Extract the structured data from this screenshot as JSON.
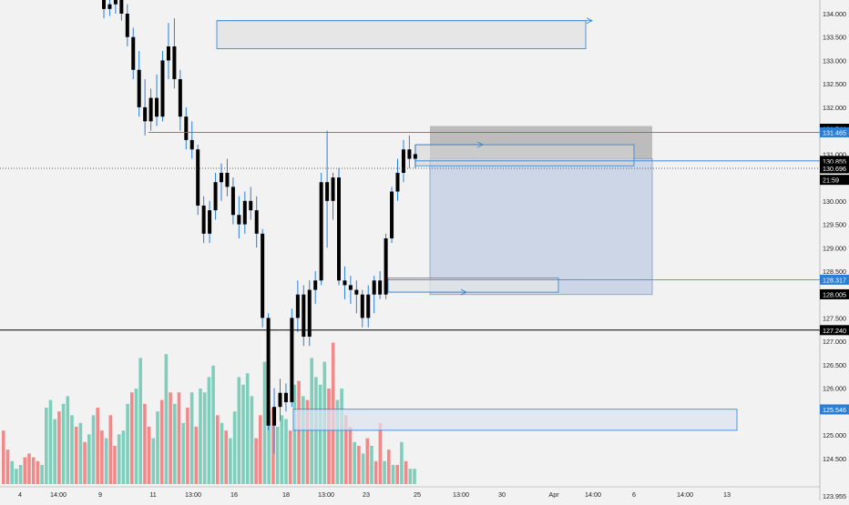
{
  "chart_data": {
    "type": "candlestick",
    "colors": {
      "background": "#f2f2f2",
      "candle": "#000000",
      "wick": "#2a7fd4",
      "volume_up": "#7fcdbb",
      "volume_down": "#f08a8a",
      "zone_fill": "#e6e6e6",
      "zone_stroke": "#2a7fd4",
      "position_profit": "#c9d4e6",
      "position_stop": "#b3b3b3",
      "label_blue": "#2a7fd4",
      "label_black": "#000000",
      "axis_text": "#222222"
    },
    "y_axis": {
      "range": [
        123.955,
        134.4
      ],
      "ticks": [
        "134.000",
        "133.500",
        "133.000",
        "132.500",
        "132.000",
        "131.500",
        "131.000",
        "130.500",
        "130.000",
        "129.500",
        "129.000",
        "128.500",
        "128.000",
        "127.500",
        "127.000",
        "126.500",
        "126.000",
        "125.500",
        "125.000",
        "124.500"
      ],
      "tick_values": [
        134.0,
        133.5,
        133.0,
        132.5,
        132.0,
        131.5,
        131.0,
        130.5,
        130.0,
        129.5,
        129.0,
        128.5,
        128.0,
        127.5,
        127.0,
        126.5,
        126.0,
        125.5,
        125.0,
        124.5
      ],
      "bottom_label": "123.955"
    },
    "x_axis": {
      "labels": [
        "4",
        "14:00",
        "9",
        "11",
        "13:00",
        "16",
        "18",
        "13:00",
        "23",
        "25",
        "13:00",
        "30",
        "Apr",
        "14:00",
        "6",
        "14:00",
        "13"
      ]
    },
    "price_labels": [
      {
        "value": 131.541,
        "text": "131.541",
        "style": "black"
      },
      {
        "value": 131.465,
        "text": "131.465",
        "style": "blue"
      },
      {
        "value": 130.855,
        "text": "130.855",
        "style": "black"
      },
      {
        "value": 130.696,
        "text": "130.696",
        "style": "black"
      },
      {
        "value": 130.45,
        "text": "21:59",
        "style": "black"
      },
      {
        "value": 128.317,
        "text": "128.317",
        "style": "blue"
      },
      {
        "value": 128.005,
        "text": "128.005",
        "style": "black"
      },
      {
        "value": 127.24,
        "text": "127.240",
        "style": "black"
      },
      {
        "value": 125.546,
        "text": "125.546",
        "style": "blue"
      }
    ],
    "candles": [
      [
        134.3,
        134.45,
        133.9,
        134.1
      ],
      [
        134.1,
        134.4,
        133.95,
        134.2
      ],
      [
        134.2,
        134.45,
        134.0,
        134.3
      ],
      [
        134.3,
        134.4,
        133.85,
        134.0
      ],
      [
        134.0,
        134.2,
        133.3,
        133.5
      ],
      [
        133.5,
        133.7,
        132.6,
        132.8
      ],
      [
        132.8,
        133.2,
        131.8,
        132.0
      ],
      [
        132.0,
        132.6,
        131.4,
        131.7
      ],
      [
        131.7,
        132.4,
        131.5,
        132.2
      ],
      [
        132.2,
        132.7,
        131.6,
        131.8
      ],
      [
        131.8,
        133.2,
        131.7,
        133.0
      ],
      [
        133.0,
        133.8,
        132.6,
        133.3
      ],
      [
        133.3,
        133.9,
        132.4,
        132.6
      ],
      [
        132.6,
        132.8,
        131.5,
        131.8
      ],
      [
        131.8,
        132.0,
        131.1,
        131.3
      ],
      [
        131.3,
        131.7,
        130.9,
        131.1
      ],
      [
        131.1,
        131.2,
        129.7,
        129.9
      ],
      [
        129.9,
        130.1,
        129.1,
        129.3
      ],
      [
        129.3,
        130.0,
        129.1,
        129.8
      ],
      [
        129.8,
        130.6,
        129.6,
        130.4
      ],
      [
        130.4,
        130.8,
        130.0,
        130.6
      ],
      [
        130.6,
        130.9,
        130.1,
        130.3
      ],
      [
        130.3,
        130.5,
        129.5,
        129.7
      ],
      [
        129.7,
        130.1,
        129.2,
        129.5
      ],
      [
        129.5,
        130.2,
        129.3,
        130.0
      ],
      [
        130.0,
        130.3,
        129.6,
        129.8
      ],
      [
        129.8,
        130.1,
        129.0,
        129.3
      ],
      [
        129.3,
        129.4,
        127.3,
        127.5
      ],
      [
        127.5,
        127.6,
        125.1,
        125.2
      ],
      [
        125.2,
        126.0,
        124.6,
        125.6
      ],
      [
        125.6,
        126.2,
        125.3,
        125.9
      ],
      [
        125.9,
        126.1,
        125.5,
        125.7
      ],
      [
        125.7,
        127.7,
        125.6,
        127.5
      ],
      [
        127.5,
        128.3,
        127.2,
        128.0
      ],
      [
        128.0,
        128.2,
        126.9,
        127.1
      ],
      [
        127.1,
        128.3,
        126.9,
        128.1
      ],
      [
        128.1,
        128.5,
        127.8,
        128.3
      ],
      [
        128.3,
        130.6,
        128.2,
        130.4
      ],
      [
        130.4,
        131.5,
        129.0,
        130.0
      ],
      [
        130.0,
        130.6,
        129.6,
        130.5
      ],
      [
        130.5,
        130.7,
        128.2,
        128.3
      ],
      [
        128.3,
        128.6,
        127.9,
        128.2
      ],
      [
        128.2,
        128.4,
        127.8,
        128.1
      ],
      [
        128.1,
        128.3,
        127.6,
        128.0
      ],
      [
        128.0,
        128.1,
        127.3,
        127.5
      ],
      [
        127.5,
        128.2,
        127.3,
        128.0
      ],
      [
        128.0,
        128.4,
        127.6,
        128.3
      ],
      [
        128.3,
        128.5,
        127.9,
        128.0
      ],
      [
        128.0,
        129.3,
        127.9,
        129.2
      ],
      [
        129.2,
        130.3,
        129.1,
        130.2
      ],
      [
        130.2,
        130.9,
        130.0,
        130.6
      ],
      [
        130.6,
        131.3,
        130.4,
        131.1
      ],
      [
        131.1,
        131.4,
        130.7,
        130.9
      ],
      [
        130.9,
        131.2,
        130.7,
        131.0
      ]
    ],
    "volume": [
      [
        14,
        "d"
      ],
      [
        9,
        "d"
      ],
      [
        6,
        "u"
      ],
      [
        4,
        "u"
      ],
      [
        5,
        "u"
      ],
      [
        7,
        "d"
      ],
      [
        8,
        "d"
      ],
      [
        7,
        "d"
      ],
      [
        6,
        "d"
      ],
      [
        5,
        "u"
      ],
      [
        20,
        "u"
      ],
      [
        22,
        "u"
      ],
      [
        17,
        "u"
      ],
      [
        19,
        "d"
      ],
      [
        21,
        "u"
      ],
      [
        23,
        "u"
      ],
      [
        18,
        "u"
      ],
      [
        15,
        "d"
      ],
      [
        16,
        "u"
      ],
      [
        11,
        "d"
      ],
      [
        13,
        "u"
      ],
      [
        18,
        "u"
      ],
      [
        20,
        "d"
      ],
      [
        14,
        "d"
      ],
      [
        12,
        "u"
      ],
      [
        18,
        "d"
      ],
      [
        10,
        "d"
      ],
      [
        13,
        "u"
      ],
      [
        14,
        "u"
      ],
      [
        21,
        "u"
      ],
      [
        24,
        "d"
      ],
      [
        25,
        "u"
      ],
      [
        33,
        "u"
      ],
      [
        21,
        "d"
      ],
      [
        15,
        "d"
      ],
      [
        12,
        "u"
      ],
      [
        19,
        "u"
      ],
      [
        22,
        "d"
      ],
      [
        34,
        "u"
      ],
      [
        24,
        "d"
      ],
      [
        21,
        "u"
      ],
      [
        24,
        "d"
      ],
      [
        16,
        "u"
      ],
      [
        20,
        "d"
      ],
      [
        24,
        "u"
      ],
      [
        15,
        "d"
      ],
      [
        25,
        "u"
      ],
      [
        24,
        "u"
      ],
      [
        28,
        "u"
      ],
      [
        31,
        "u"
      ],
      [
        18,
        "d"
      ],
      [
        16,
        "u"
      ],
      [
        14,
        "d"
      ],
      [
        12,
        "u"
      ],
      [
        19,
        "u"
      ],
      [
        28,
        "u"
      ],
      [
        26,
        "u"
      ],
      [
        29,
        "u"
      ],
      [
        23,
        "u"
      ],
      [
        12,
        "d"
      ],
      [
        18,
        "d"
      ],
      [
        32,
        "u"
      ],
      [
        19,
        "u"
      ],
      [
        20,
        "d"
      ],
      [
        15,
        "u"
      ],
      [
        18,
        "u"
      ],
      [
        17,
        "u"
      ],
      [
        14,
        "d"
      ],
      [
        26,
        "u"
      ],
      [
        27,
        "d"
      ],
      [
        23,
        "u"
      ],
      [
        22,
        "d"
      ],
      [
        33,
        "u"
      ],
      [
        28,
        "u"
      ],
      [
        26,
        "u"
      ],
      [
        32,
        "u"
      ],
      [
        25,
        "d"
      ],
      [
        37,
        "d"
      ],
      [
        22,
        "u"
      ],
      [
        25,
        "u"
      ],
      [
        18,
        "d"
      ],
      [
        15,
        "d"
      ],
      [
        11,
        "u"
      ],
      [
        10,
        "d"
      ],
      [
        8,
        "u"
      ],
      [
        12,
        "d"
      ],
      [
        10,
        "u"
      ],
      [
        6,
        "d"
      ],
      [
        16,
        "d"
      ],
      [
        6,
        "u"
      ],
      [
        9,
        "d"
      ],
      [
        5,
        "u"
      ],
      [
        5,
        "d"
      ],
      [
        11,
        "u"
      ],
      [
        6,
        "d"
      ],
      [
        4,
        "u"
      ],
      [
        4,
        "u"
      ]
    ]
  }
}
